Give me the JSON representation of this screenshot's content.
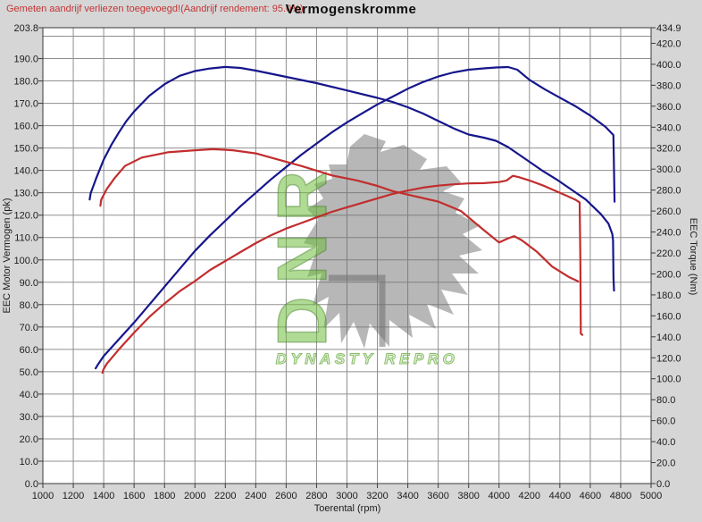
{
  "header": {
    "note": "Gemeten aandrijf verliezen toegevoegd!(Aandrijf rendement: 95.0%)",
    "title": "Vermogenskromme"
  },
  "axes": {
    "x": {
      "label": "Toerental (rpm)",
      "min": 1000,
      "max": 5000,
      "ticks": [
        1000,
        1200,
        1400,
        1600,
        1800,
        2000,
        2200,
        2400,
        2600,
        2800,
        3000,
        3200,
        3400,
        3600,
        3800,
        4000,
        4200,
        4400,
        4600,
        4800,
        5000
      ]
    },
    "y_left": {
      "label": "EEC Motor Vermogen (pk)",
      "min": 0,
      "max": 203.8,
      "ticks": [
        203.8,
        190,
        180,
        170,
        160,
        150,
        140,
        130,
        120,
        110,
        100,
        90,
        80,
        70,
        60,
        50,
        40,
        30,
        20,
        10,
        0
      ],
      "grid_step": 10
    },
    "y_right": {
      "label": "EEC Torque (Nm)",
      "min": 0,
      "max": 434.9,
      "ticks": [
        434.9,
        420,
        400,
        380,
        360,
        340,
        320,
        300,
        280,
        260,
        240,
        220,
        200,
        180,
        160,
        140,
        120,
        100,
        80,
        60,
        40,
        20,
        0
      ]
    }
  },
  "watermark": {
    "logo": "DNR",
    "text": "DYNASTY REPRO"
  },
  "colors": {
    "blue_curve": "#16168c",
    "red_curve": "#c22d2d",
    "grid": "#8f8f8f",
    "note_red": "#c43333"
  },
  "chart_data": {
    "type": "line",
    "title": "Vermogenskromme",
    "xlabel": "Toerental (rpm)",
    "ylabel_left": "EEC Motor Vermogen (pk)",
    "ylabel_right": "EEC Torque (Nm)",
    "x_range": [
      1000,
      5000
    ],
    "y_left_range": [
      0,
      203.8
    ],
    "y_right_range": [
      0,
      434.9
    ],
    "grid": true,
    "legend": "none",
    "series": [
      {
        "name": "power_blue",
        "axis": "left",
        "color": "#16168c",
        "points": [
          [
            1347,
            51.5
          ],
          [
            1360,
            53
          ],
          [
            1400,
            57
          ],
          [
            1500,
            64.5
          ],
          [
            1600,
            72
          ],
          [
            1700,
            80
          ],
          [
            1800,
            88
          ],
          [
            1900,
            96
          ],
          [
            2000,
            104
          ],
          [
            2100,
            111
          ],
          [
            2200,
            117.5
          ],
          [
            2300,
            124
          ],
          [
            2400,
            130
          ],
          [
            2500,
            136
          ],
          [
            2600,
            141.5
          ],
          [
            2700,
            147
          ],
          [
            2800,
            152
          ],
          [
            2900,
            157
          ],
          [
            3000,
            161.5
          ],
          [
            3100,
            165.5
          ],
          [
            3200,
            169.5
          ],
          [
            3300,
            173
          ],
          [
            3400,
            176.5
          ],
          [
            3500,
            179.5
          ],
          [
            3600,
            182
          ],
          [
            3700,
            183.8
          ],
          [
            3800,
            185
          ],
          [
            3900,
            185.6
          ],
          [
            3980,
            186
          ],
          [
            4060,
            186.2
          ],
          [
            4120,
            185
          ],
          [
            4200,
            180.5
          ],
          [
            4300,
            176.3
          ],
          [
            4400,
            172.5
          ],
          [
            4500,
            168.8
          ],
          [
            4600,
            164.5
          ],
          [
            4700,
            159.5
          ],
          [
            4752,
            155.8
          ],
          [
            4756,
            140
          ],
          [
            4760,
            126
          ]
        ]
      },
      {
        "name": "torque_blue",
        "axis": "right",
        "color": "#16168c",
        "points": [
          [
            1308,
            271
          ],
          [
            1314,
            277
          ],
          [
            1350,
            291
          ],
          [
            1400,
            309
          ],
          [
            1450,
            323
          ],
          [
            1500,
            335
          ],
          [
            1550,
            346
          ],
          [
            1600,
            355
          ],
          [
            1700,
            370
          ],
          [
            1800,
            381
          ],
          [
            1900,
            389
          ],
          [
            2000,
            393.5
          ],
          [
            2100,
            396
          ],
          [
            2200,
            397.5
          ],
          [
            2300,
            396.5
          ],
          [
            2400,
            394
          ],
          [
            2500,
            391
          ],
          [
            2600,
            388
          ],
          [
            2800,
            382
          ],
          [
            3000,
            375
          ],
          [
            3200,
            368
          ],
          [
            3300,
            364
          ],
          [
            3400,
            359
          ],
          [
            3500,
            353
          ],
          [
            3600,
            346
          ],
          [
            3700,
            339
          ],
          [
            3800,
            333
          ],
          [
            3900,
            330
          ],
          [
            3980,
            327
          ],
          [
            4060,
            321
          ],
          [
            4180,
            309
          ],
          [
            4280,
            299
          ],
          [
            4380,
            290
          ],
          [
            4480,
            280
          ],
          [
            4570,
            271
          ],
          [
            4670,
            257
          ],
          [
            4720,
            248
          ],
          [
            4745,
            238
          ],
          [
            4750,
            232
          ],
          [
            4753,
            196
          ],
          [
            4756,
            184
          ]
        ]
      },
      {
        "name": "power_red",
        "axis": "left",
        "color": "#c22d2d",
        "points": [
          [
            1392,
            49.5
          ],
          [
            1398,
            51
          ],
          [
            1420,
            53.5
          ],
          [
            1500,
            60
          ],
          [
            1600,
            67.5
          ],
          [
            1700,
            74.5
          ],
          [
            1800,
            80.5
          ],
          [
            1900,
            86
          ],
          [
            2000,
            90.5
          ],
          [
            2100,
            95.5
          ],
          [
            2200,
            99.5
          ],
          [
            2300,
            103.5
          ],
          [
            2400,
            107.5
          ],
          [
            2500,
            111
          ],
          [
            2600,
            114
          ],
          [
            2700,
            116.5
          ],
          [
            2800,
            119
          ],
          [
            2900,
            121.5
          ],
          [
            3000,
            123.5
          ],
          [
            3100,
            125.5
          ],
          [
            3200,
            127.5
          ],
          [
            3300,
            129.5
          ],
          [
            3400,
            131
          ],
          [
            3500,
            132.3
          ],
          [
            3600,
            133.2
          ],
          [
            3700,
            133.8
          ],
          [
            3800,
            134.2
          ],
          [
            3900,
            134.3
          ],
          [
            4000,
            134.8
          ],
          [
            4050,
            135.5
          ],
          [
            4090,
            137.6
          ],
          [
            4130,
            137
          ],
          [
            4200,
            135.5
          ],
          [
            4300,
            133
          ],
          [
            4400,
            130
          ],
          [
            4500,
            127
          ],
          [
            4530,
            125.7
          ],
          [
            4535,
            100
          ],
          [
            4538,
            67
          ],
          [
            4548,
            66.5
          ]
        ]
      },
      {
        "name": "torque_red",
        "axis": "right",
        "color": "#c22d2d",
        "points": [
          [
            1378,
            265
          ],
          [
            1384,
            271
          ],
          [
            1420,
            281
          ],
          [
            1470,
            291
          ],
          [
            1540,
            303
          ],
          [
            1650,
            311
          ],
          [
            1820,
            316
          ],
          [
            2000,
            318
          ],
          [
            2120,
            319
          ],
          [
            2250,
            318
          ],
          [
            2400,
            315
          ],
          [
            2500,
            311
          ],
          [
            2700,
            303
          ],
          [
            2900,
            294
          ],
          [
            3070,
            289
          ],
          [
            3200,
            284
          ],
          [
            3300,
            279
          ],
          [
            3450,
            274
          ],
          [
            3600,
            269
          ],
          [
            3750,
            260
          ],
          [
            3890,
            243
          ],
          [
            4000,
            230
          ],
          [
            4060,
            234
          ],
          [
            4100,
            236
          ],
          [
            4150,
            232
          ],
          [
            4250,
            221
          ],
          [
            4350,
            207
          ],
          [
            4460,
            197
          ],
          [
            4520,
            193
          ]
        ]
      }
    ]
  }
}
